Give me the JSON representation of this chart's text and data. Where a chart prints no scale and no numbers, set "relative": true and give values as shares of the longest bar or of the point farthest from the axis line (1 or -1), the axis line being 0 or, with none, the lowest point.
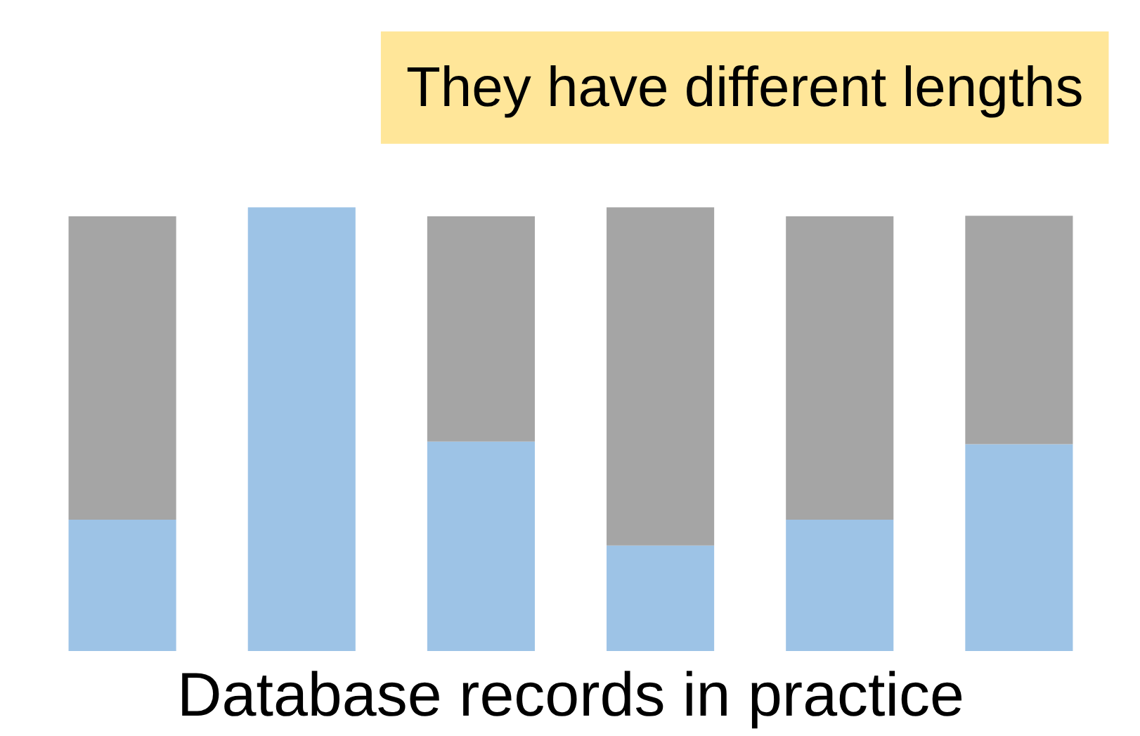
{
  "chart_data": {
    "type": "bar",
    "title": "Database records in practice",
    "relative": true,
    "stacked": true,
    "categories": [
      null,
      null,
      null,
      null,
      null,
      null
    ],
    "series": [
      {
        "color": "#9dc3e6",
        "values": [
          0.296,
          1.0,
          0.472,
          0.238,
          0.296,
          0.466
        ]
      },
      {
        "color": "#a5a5a5",
        "values": [
          0.684,
          0,
          0.508,
          0.762,
          0.684,
          0.515
        ]
      }
    ],
    "annotations": [
      "They have different lengths"
    ],
    "grid": false
  }
}
